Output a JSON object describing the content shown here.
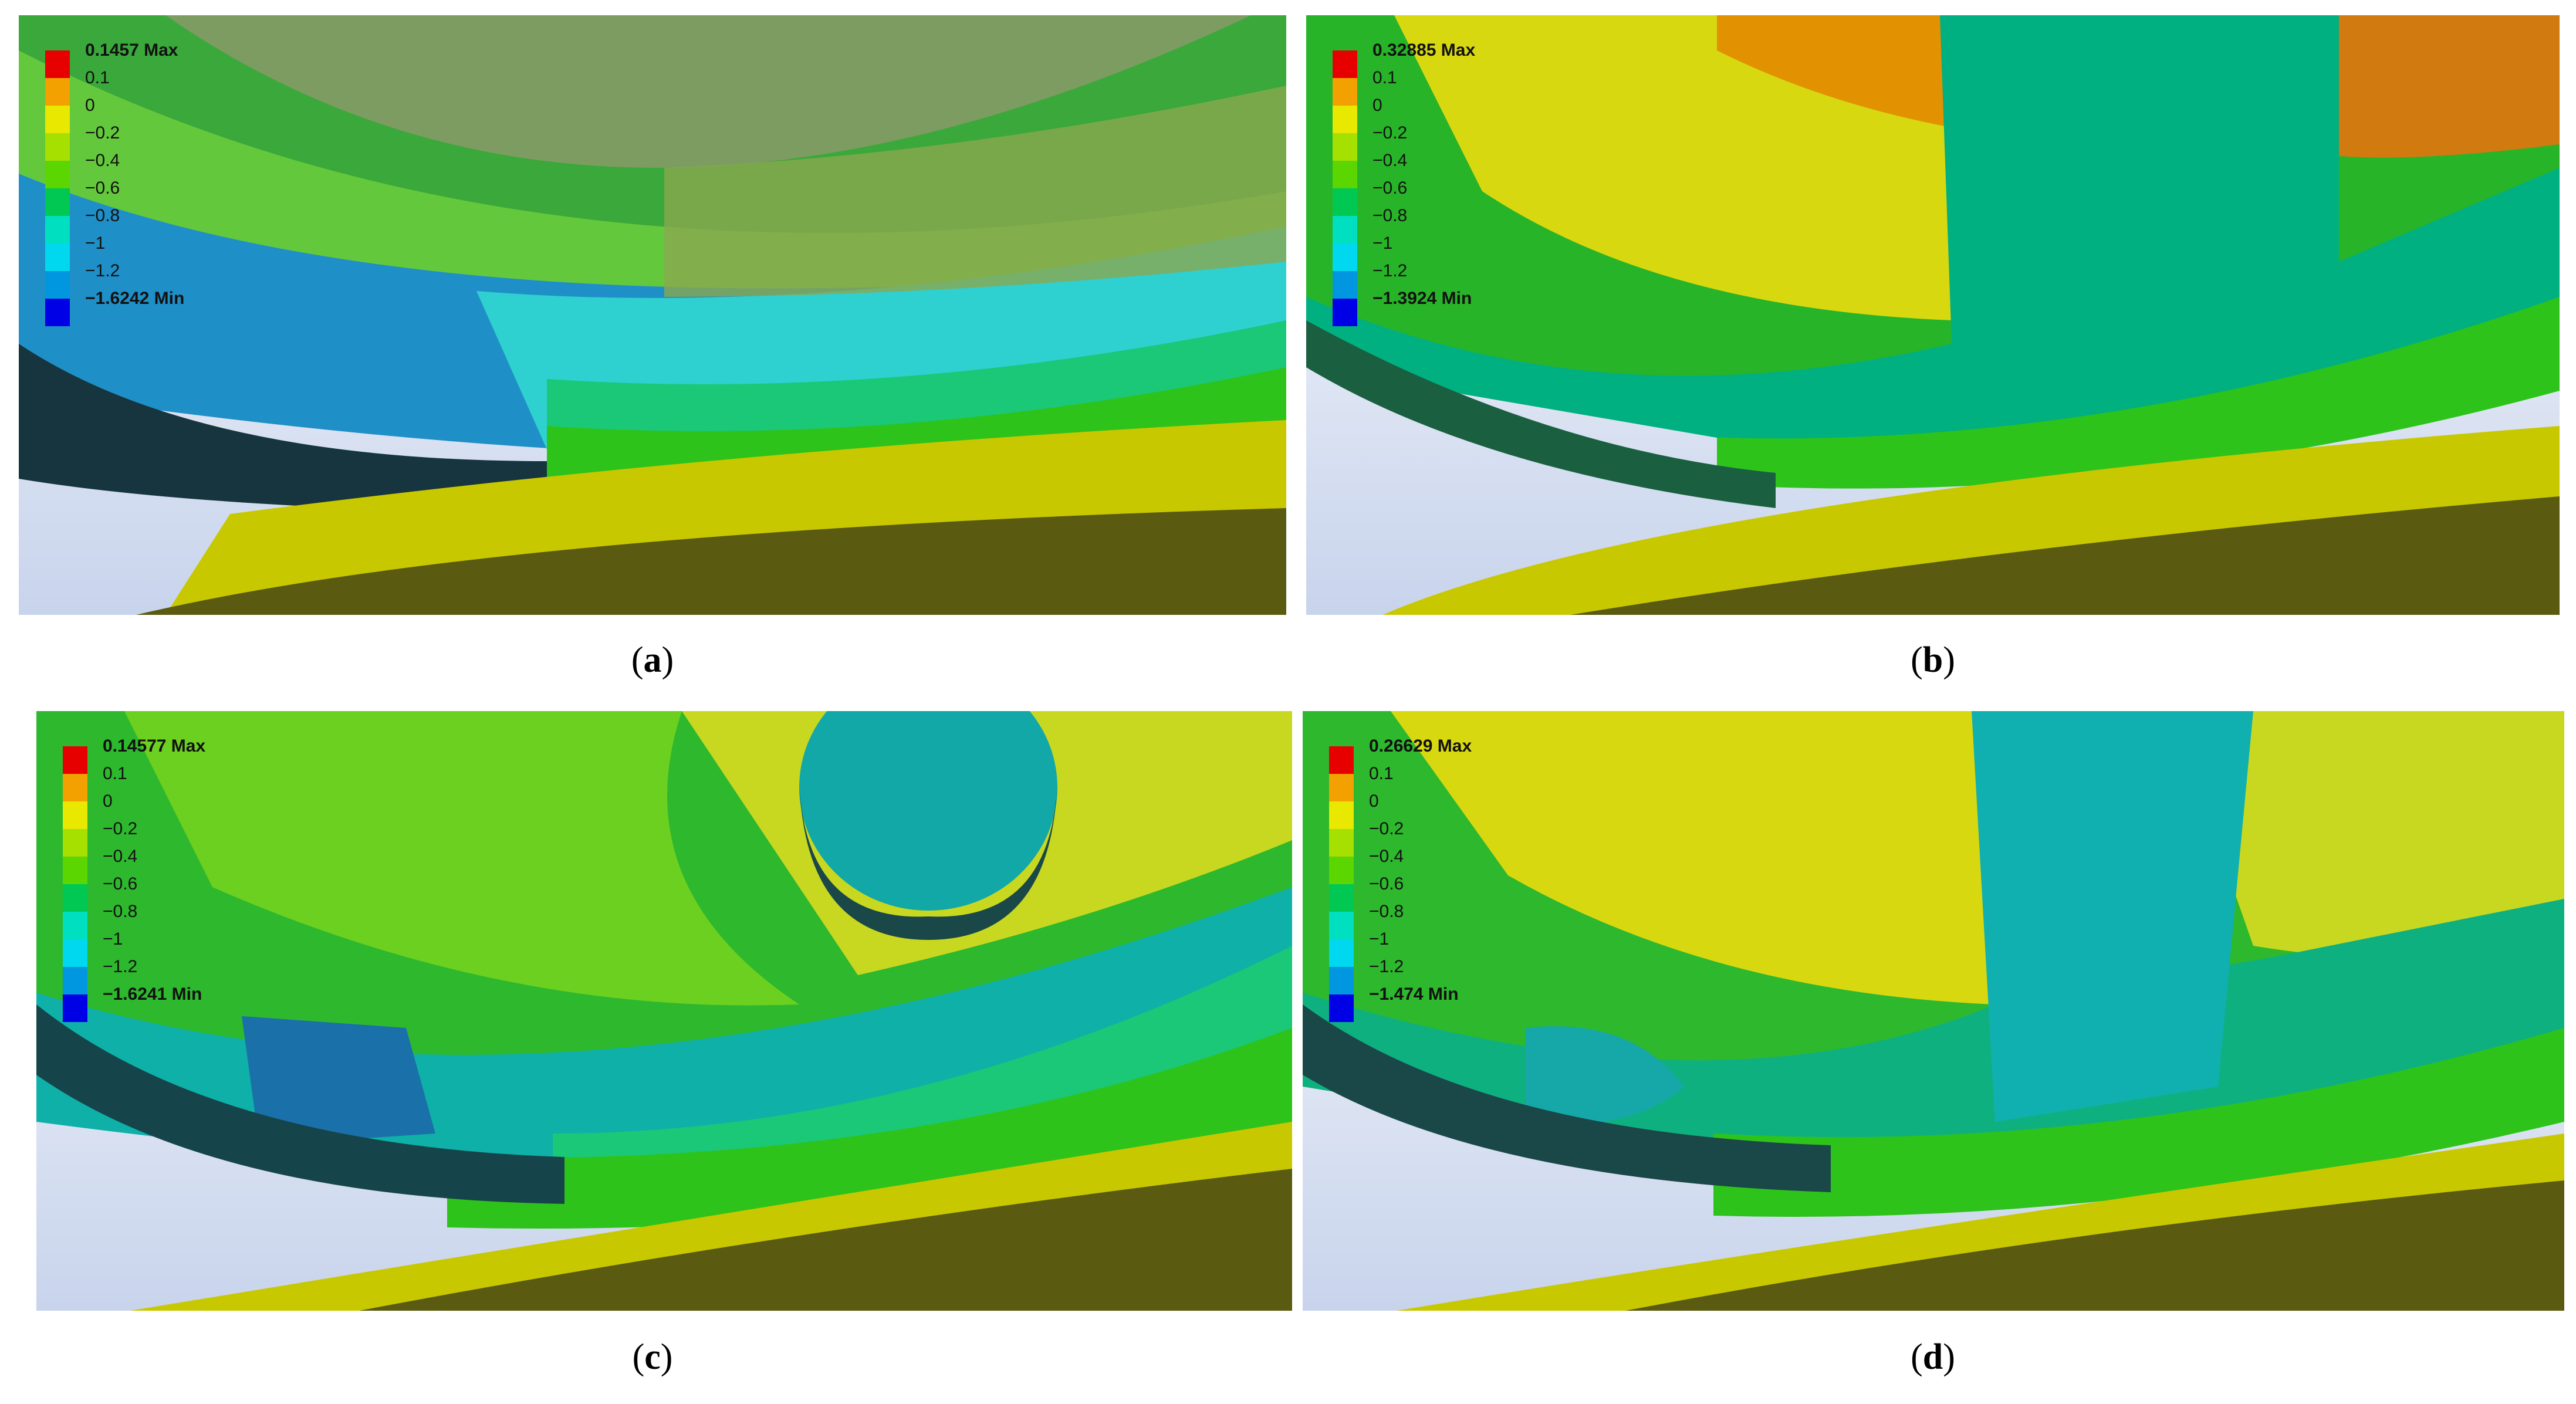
{
  "panels": [
    {
      "id": "a",
      "caption_letter": "a",
      "legend": {
        "max_label": "0.1457 Max",
        "min_label": "−1.6242 Min",
        "tick_labels": [
          "0.1",
          "0",
          "−0.2",
          "−0.4",
          "−0.6",
          "−0.8",
          "−1",
          "−1.2"
        ]
      }
    },
    {
      "id": "b",
      "caption_letter": "b",
      "legend": {
        "max_label": "0.32885 Max",
        "min_label": "−1.3924 Min",
        "tick_labels": [
          "0.1",
          "0",
          "−0.2",
          "−0.4",
          "−0.6",
          "−0.8",
          "−1",
          "−1.2"
        ]
      }
    },
    {
      "id": "c",
      "caption_letter": "c",
      "legend": {
        "max_label": "0.14577 Max",
        "min_label": "−1.6241 Min",
        "tick_labels": [
          "0.1",
          "0",
          "−0.2",
          "−0.4",
          "−0.6",
          "−0.8",
          "−1",
          "−1.2"
        ]
      }
    },
    {
      "id": "d",
      "caption_letter": "d",
      "legend": {
        "max_label": "0.26629 Max",
        "min_label": "−1.474 Min",
        "tick_labels": [
          "0.1",
          "0",
          "−0.2",
          "−0.4",
          "−0.6",
          "−0.8",
          "−1",
          "−1.2"
        ]
      }
    }
  ],
  "legend_colors": [
    "#e60000",
    "#f2a100",
    "#e8e800",
    "#a6e000",
    "#5cd600",
    "#00c853",
    "#00e0c0",
    "#00d8f0",
    "#0096e0",
    "#0000e6"
  ],
  "caption_open": "(",
  "caption_close": ")"
}
